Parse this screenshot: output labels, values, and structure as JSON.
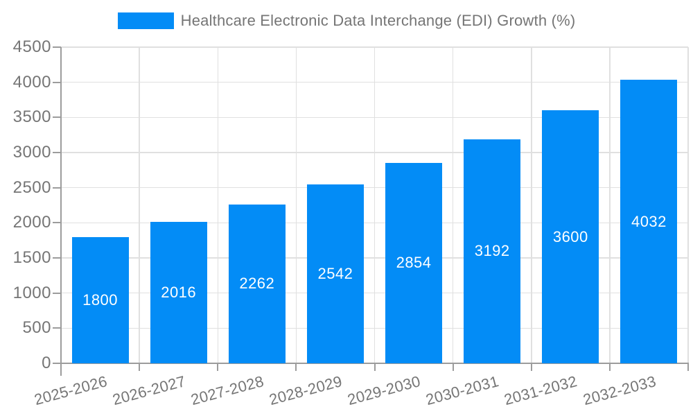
{
  "chart_data": {
    "type": "bar",
    "title": "Healthcare Electronic Data Interchange (EDI) Growth (%)",
    "categories": [
      "2025-2026",
      "2026-2027",
      "2027-2028",
      "2028-2029",
      "2029-2030",
      "2030-2031",
      "2031-2032",
      "2032-2033"
    ],
    "series": [
      {
        "name": "Healthcare Electronic Data Interchange (EDI) Growth (%)",
        "values": [
          1800,
          2016,
          2262,
          2542,
          2854,
          3192,
          3600,
          4032
        ]
      }
    ],
    "data_labels_visible": true,
    "xlabel": "",
    "ylabel": "",
    "ylim": [
      0,
      4500
    ],
    "ytick_step": 500,
    "yticks": [
      0,
      500,
      1000,
      1500,
      2000,
      2500,
      3000,
      3500,
      4000,
      4500
    ],
    "grid": true,
    "legend_position": "top",
    "x_tick_rotation_deg": -15,
    "style": {
      "bar_color": "#038cf6",
      "grid_color": "#e0e0e0",
      "axis_color": "#9c9c9c",
      "tick_label_color": "#757575",
      "legend_text_color": "#757575",
      "data_label_color": "#ffffff",
      "background": "#ffffff"
    }
  }
}
